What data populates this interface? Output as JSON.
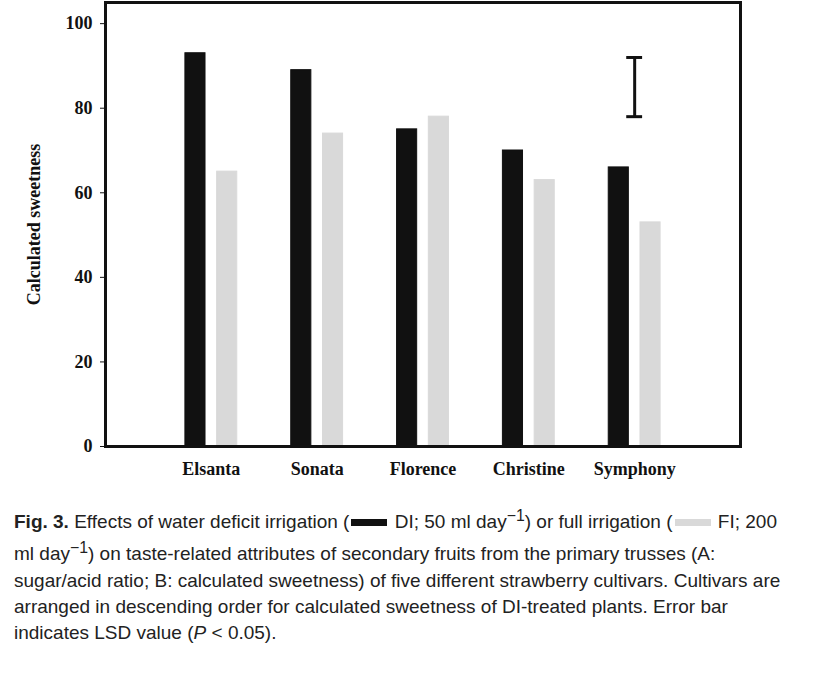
{
  "chart_data": {
    "type": "bar",
    "ylabel": "Calculated sweetness",
    "categories": [
      "Elsanta",
      "Sonata",
      "Florence",
      "Christine",
      "Symphony"
    ],
    "series": [
      {
        "name": "DI",
        "color": "#111111",
        "values": [
          93,
          89,
          75,
          70,
          66
        ]
      },
      {
        "name": "FI",
        "color": "#d9d9d9",
        "values": [
          65,
          74,
          78,
          63,
          53
        ]
      }
    ],
    "ylim": [
      0,
      105
    ],
    "yticks": [
      0,
      20,
      40,
      60,
      80,
      100
    ],
    "lsd": [
      78,
      92
    ],
    "caption": {
      "label": "Fig. 3.",
      "segments": [
        {
          "text": " Effects of water deficit irrigation ("
        },
        {
          "series": 0
        },
        {
          "text": "; 50 ml day"
        },
        {
          "sup": "−1"
        },
        {
          "text": ") or full irrigation ("
        },
        {
          "series": 1
        },
        {
          "text": "; 200 ml day"
        },
        {
          "sup": "−1"
        },
        {
          "text": ") on taste-related attributes of secondary fruits from the primary trusses (A: sugar/acid ratio; B: calculated sweetness) of five different strawberry cultivars. Cultivars are arranged in descending order for calculated sweetness of DI-treated plants. Error bar indicates LSD value ("
        },
        {
          "italic": "P"
        },
        {
          "text": " < 0.05)."
        }
      ]
    }
  }
}
